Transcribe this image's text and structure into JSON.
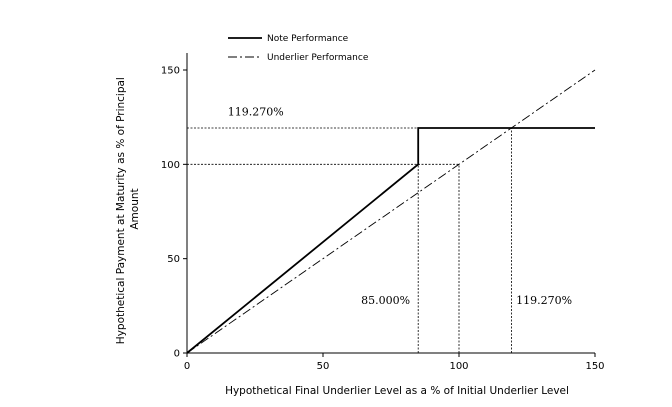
{
  "chart_data": {
    "type": "line",
    "xlabel": "Hypothetical Final Underlier Level as a % of Initial Underlier Level",
    "ylabel": "Hypothetical Payment at Maturity as % of Principal Amount",
    "ylabel_lines": [
      "Hypothetical Payment at Maturity as % of Principal",
      "Amount"
    ],
    "xlim": [
      0,
      150
    ],
    "ylim": [
      0,
      150
    ],
    "xticks": [
      0,
      50,
      100,
      150
    ],
    "yticks": [
      0,
      50,
      100,
      150
    ],
    "legend_placement": "top-left",
    "series": [
      {
        "name": "Note Performance",
        "style": "solid",
        "x": [
          0,
          85,
          85,
          150
        ],
        "y": [
          0,
          100,
          119.27,
          119.27
        ]
      },
      {
        "name": "Underlier Performance",
        "style": "dash-dot",
        "x": [
          0,
          150
        ],
        "y": [
          0,
          150
        ]
      }
    ],
    "reference_lines": [
      {
        "orientation": "horizontal",
        "value": 119.27,
        "from": 0,
        "to": 85
      },
      {
        "orientation": "horizontal",
        "value": 100,
        "from": 0,
        "to": 100
      },
      {
        "orientation": "vertical",
        "value": 85,
        "from": 0,
        "to": 119.27
      },
      {
        "orientation": "vertical",
        "value": 100,
        "from": 0,
        "to": 100
      },
      {
        "orientation": "vertical",
        "value": 119.27,
        "from": 0,
        "to": 119.27
      }
    ],
    "annotations": [
      {
        "text": "119.270%",
        "x": 15,
        "y": 126
      },
      {
        "text": "85.000%",
        "x": 64,
        "y": 26
      },
      {
        "text": "119.270%",
        "x": 121,
        "y": 26
      }
    ]
  }
}
